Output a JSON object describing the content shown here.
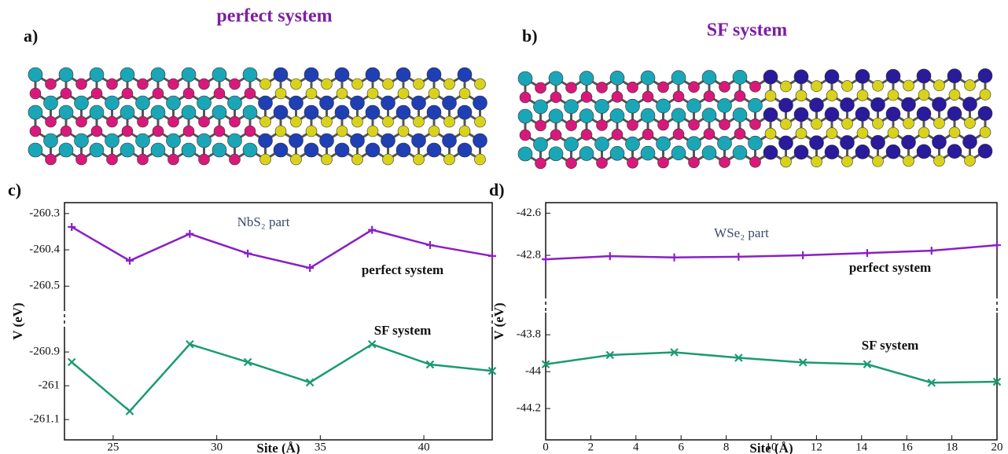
{
  "structures": [
    {
      "label": "a)",
      "title": "perfect system"
    },
    {
      "label": "b)",
      "title": "SF system"
    }
  ],
  "chart_data": [
    {
      "type": "line",
      "panel_label": "c)",
      "annotation": "NbS₂ part",
      "x_label": "Site (Å)",
      "y_label": "V (eV)",
      "x": [
        23.0,
        25.8,
        28.7,
        31.5,
        34.5,
        37.5,
        40.3,
        43.3
      ],
      "series": [
        {
          "name": "perfect system",
          "color": "#8a1fc4",
          "marker": "plus",
          "values": [
            -260.337,
            -260.43,
            -260.356,
            -260.41,
            -260.45,
            -260.345,
            -260.387,
            -260.417
          ]
        },
        {
          "name": "SF system",
          "color": "#1a9a73",
          "marker": "x",
          "values": [
            -260.93,
            -261.075,
            -260.877,
            -260.93,
            -260.99,
            -260.877,
            -260.937,
            -260.956
          ]
        }
      ],
      "xlim": [
        22.65,
        43.3
      ],
      "xticks": [
        25,
        30,
        35,
        40
      ],
      "ylim": [
        -261.16,
        -260.27
      ],
      "y_break": [
        -260.83,
        -260.56
      ],
      "yticks": [
        -261.1,
        -261,
        -260.9,
        -260.5,
        -260.4,
        -260.3
      ]
    },
    {
      "type": "line",
      "panel_label": "d)",
      "annotation": "WSe₂ part",
      "x_label": "Site (Å)",
      "y_label": "V (eV)",
      "x": [
        0,
        2.85,
        5.7,
        8.55,
        11.4,
        14.25,
        17.1,
        20
      ],
      "series": [
        {
          "name": "perfect system",
          "color": "#8a1fc4",
          "marker": "plus",
          "values": [
            -42.819,
            -42.804,
            -42.81,
            -42.807,
            -42.8,
            -42.789,
            -42.778,
            -42.752
          ]
        },
        {
          "name": "SF system",
          "color": "#1a9a73",
          "marker": "x",
          "values": [
            -43.96,
            -43.91,
            -43.895,
            -43.925,
            -43.95,
            -43.96,
            -44.06,
            -44.055
          ]
        }
      ],
      "xlim": [
        0,
        20
      ],
      "xticks": [
        0,
        2,
        4,
        6,
        8,
        10,
        12,
        14,
        16,
        18,
        20
      ],
      "ylim": [
        -44.37,
        -42.55
      ],
      "y_break": [
        -43.68,
        -42.99
      ],
      "yticks": [
        -44.2,
        -44,
        -43.8,
        -42.8,
        -42.6
      ]
    }
  ]
}
